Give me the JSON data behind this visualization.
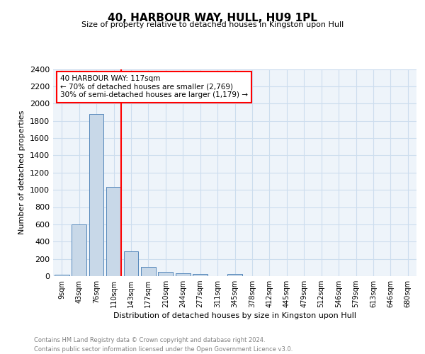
{
  "title": "40, HARBOUR WAY, HULL, HU9 1PL",
  "subtitle": "Size of property relative to detached houses in Kingston upon Hull",
  "xlabel": "Distribution of detached houses by size in Kingston upon Hull",
  "ylabel": "Number of detached properties",
  "categories": [
    "9sqm",
    "43sqm",
    "76sqm",
    "110sqm",
    "143sqm",
    "177sqm",
    "210sqm",
    "244sqm",
    "277sqm",
    "311sqm",
    "345sqm",
    "378sqm",
    "412sqm",
    "445sqm",
    "479sqm",
    "512sqm",
    "546sqm",
    "579sqm",
    "613sqm",
    "646sqm",
    "680sqm"
  ],
  "values": [
    20,
    600,
    1880,
    1030,
    290,
    110,
    48,
    35,
    22,
    0,
    22,
    0,
    0,
    0,
    0,
    0,
    0,
    0,
    0,
    0,
    0
  ],
  "bar_color": "#c8d8e8",
  "bar_edge_color": "#5588bb",
  "vline_x": 3.42,
  "annotation_line1": "40 HARBOUR WAY: 117sqm",
  "annotation_line2": "← 70% of detached houses are smaller (2,769)",
  "annotation_line3": "30% of semi-detached houses are larger (1,179) →",
  "vline_color": "red",
  "grid_color": "#ccddee",
  "background_color": "#eef4fa",
  "ylim": [
    0,
    2400
  ],
  "yticks": [
    0,
    200,
    400,
    600,
    800,
    1000,
    1200,
    1400,
    1600,
    1800,
    2000,
    2200,
    2400
  ],
  "footer_line1": "Contains HM Land Registry data © Crown copyright and database right 2024.",
  "footer_line2": "Contains public sector information licensed under the Open Government Licence v3.0."
}
